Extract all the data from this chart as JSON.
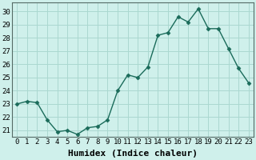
{
  "x": [
    0,
    1,
    2,
    3,
    4,
    5,
    6,
    7,
    8,
    9,
    10,
    11,
    12,
    13,
    14,
    15,
    16,
    17,
    18,
    19,
    20,
    21,
    22,
    23
  ],
  "y": [
    23.0,
    23.2,
    23.1,
    21.8,
    20.9,
    21.0,
    20.7,
    21.2,
    21.3,
    21.8,
    24.0,
    25.2,
    25.0,
    25.8,
    28.2,
    28.4,
    29.6,
    29.2,
    30.2,
    28.7,
    28.7,
    27.2,
    25.7,
    24.6
  ],
  "line_color": "#1a6b5a",
  "marker": "D",
  "marker_size": 2.5,
  "bg_color": "#cff0eb",
  "grid_color": "#aad8d0",
  "xlabel": "Humidex (Indice chaleur)",
  "xlim": [
    -0.5,
    23.5
  ],
  "ylim": [
    20.5,
    30.7
  ],
  "yticks": [
    21,
    22,
    23,
    24,
    25,
    26,
    27,
    28,
    29,
    30
  ],
  "xticks": [
    0,
    1,
    2,
    3,
    4,
    5,
    6,
    7,
    8,
    9,
    10,
    11,
    12,
    13,
    14,
    15,
    16,
    17,
    18,
    19,
    20,
    21,
    22,
    23
  ],
  "tick_label_fontsize": 6.5,
  "xlabel_fontsize": 8,
  "spine_color": "#556b66",
  "linewidth": 1.0
}
